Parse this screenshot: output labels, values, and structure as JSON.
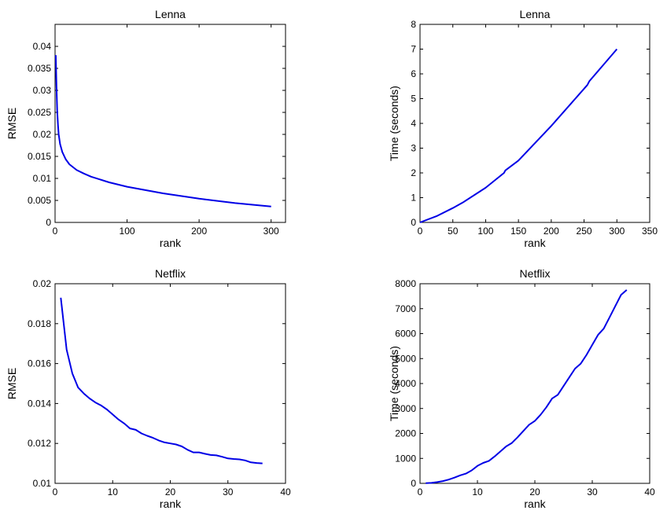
{
  "chart_data": [
    {
      "type": "line",
      "title": "Lenna",
      "xlabel": "rank",
      "ylabel": "RMSE",
      "xlim": [
        0,
        320
      ],
      "ylim": [
        0,
        0.045
      ],
      "xticks": [
        0,
        100,
        200,
        300
      ],
      "yticks": [
        0,
        0.005,
        0.01,
        0.015,
        0.02,
        0.025,
        0.03,
        0.035,
        0.04
      ],
      "xtick_labels": [
        "0",
        "100",
        "200",
        "300"
      ],
      "ytick_labels": [
        "0",
        "0.005",
        "0.01",
        "0.015",
        "0.02",
        "0.025",
        "0.03",
        "0.035",
        "0.04"
      ],
      "color": "#0000e6",
      "series": [
        {
          "x": [
            1,
            2,
            3,
            4,
            5,
            7,
            10,
            15,
            20,
            30,
            40,
            50,
            75,
            100,
            150,
            200,
            250,
            300
          ],
          "y": [
            0.038,
            0.031,
            0.0255,
            0.0222,
            0.02,
            0.0178,
            0.016,
            0.0143,
            0.0132,
            0.0119,
            0.0111,
            0.0104,
            0.0091,
            0.0081,
            0.0066,
            0.0054,
            0.0044,
            0.0036
          ]
        }
      ]
    },
    {
      "type": "line",
      "title": "Lenna",
      "xlabel": "rank",
      "ylabel": "Time (seconds)",
      "xlim": [
        0,
        350
      ],
      "ylim": [
        0,
        8
      ],
      "xticks": [
        0,
        50,
        100,
        150,
        200,
        250,
        300,
        350
      ],
      "yticks": [
        0,
        1,
        2,
        3,
        4,
        5,
        6,
        7,
        8
      ],
      "xtick_labels": [
        "0",
        "50",
        "100",
        "150",
        "200",
        "250",
        "300",
        "350"
      ],
      "ytick_labels": [
        "0",
        "1",
        "2",
        "3",
        "4",
        "5",
        "6",
        "7",
        "8"
      ],
      "color": "#0000e6",
      "series": [
        {
          "x": [
            0,
            25,
            50,
            65,
            100,
            128,
            130,
            150,
            200,
            255,
            258,
            300
          ],
          "y": [
            0,
            0.25,
            0.58,
            0.8,
            1.4,
            2.0,
            2.1,
            2.5,
            3.9,
            5.55,
            5.7,
            7.0
          ]
        }
      ]
    },
    {
      "type": "line",
      "title": "Netflix",
      "xlabel": "rank",
      "ylabel": "RMSE",
      "xlim": [
        0,
        40
      ],
      "ylim": [
        0.01,
        0.02
      ],
      "xticks": [
        0,
        10,
        20,
        30,
        40
      ],
      "yticks": [
        0.01,
        0.012,
        0.014,
        0.016,
        0.018,
        0.02
      ],
      "xtick_labels": [
        "0",
        "10",
        "20",
        "30",
        "40"
      ],
      "ytick_labels": [
        "0.01",
        "0.012",
        "0.014",
        "0.016",
        "0.018",
        "0.02"
      ],
      "color": "#0000e6",
      "series": [
        {
          "x": [
            1,
            2,
            3,
            4,
            5,
            6,
            7,
            8,
            9,
            10,
            11,
            12,
            13,
            14,
            15,
            16,
            17,
            18,
            19,
            20,
            21,
            22,
            23,
            24,
            25,
            26,
            27,
            28,
            29,
            30,
            31,
            32,
            33,
            34,
            35,
            36
          ],
          "y": [
            0.0193,
            0.0167,
            0.0155,
            0.0148,
            0.0145,
            0.01425,
            0.01405,
            0.0139,
            0.0137,
            0.01345,
            0.0132,
            0.013,
            0.01275,
            0.01268,
            0.0125,
            0.01238,
            0.01228,
            0.01215,
            0.01205,
            0.012,
            0.01195,
            0.01185,
            0.01168,
            0.01155,
            0.01155,
            0.01148,
            0.01142,
            0.0114,
            0.01133,
            0.01125,
            0.01122,
            0.0112,
            0.01115,
            0.01105,
            0.01102,
            0.011
          ]
        }
      ]
    },
    {
      "type": "line",
      "title": "Netflix",
      "xlabel": "rank",
      "ylabel": "Time (seconds)",
      "xlim": [
        0,
        40
      ],
      "ylim": [
        0,
        8000
      ],
      "xticks": [
        0,
        10,
        20,
        30,
        40
      ],
      "yticks": [
        0,
        1000,
        2000,
        3000,
        4000,
        5000,
        6000,
        7000,
        8000
      ],
      "xtick_labels": [
        "0",
        "10",
        "20",
        "30",
        "40"
      ],
      "ytick_labels": [
        "0",
        "1000",
        "2000",
        "3000",
        "4000",
        "5000",
        "6000",
        "7000",
        "8000"
      ],
      "color": "#0000e6",
      "series": [
        {
          "x": [
            1,
            2,
            3,
            4,
            5,
            6,
            7,
            8,
            9,
            10,
            11,
            12,
            13,
            14,
            15,
            16,
            17,
            18,
            19,
            20,
            21,
            22,
            23,
            24,
            25,
            26,
            27,
            28,
            29,
            30,
            31,
            32,
            33,
            34,
            35,
            36
          ],
          "y": [
            5,
            20,
            50,
            90,
            150,
            230,
            320,
            390,
            520,
            700,
            820,
            900,
            1080,
            1280,
            1480,
            1620,
            1850,
            2100,
            2350,
            2500,
            2750,
            3050,
            3400,
            3550,
            3900,
            4250,
            4600,
            4800,
            5150,
            5550,
            5950,
            6200,
            6650,
            7100,
            7550,
            7750
          ]
        }
      ]
    }
  ]
}
